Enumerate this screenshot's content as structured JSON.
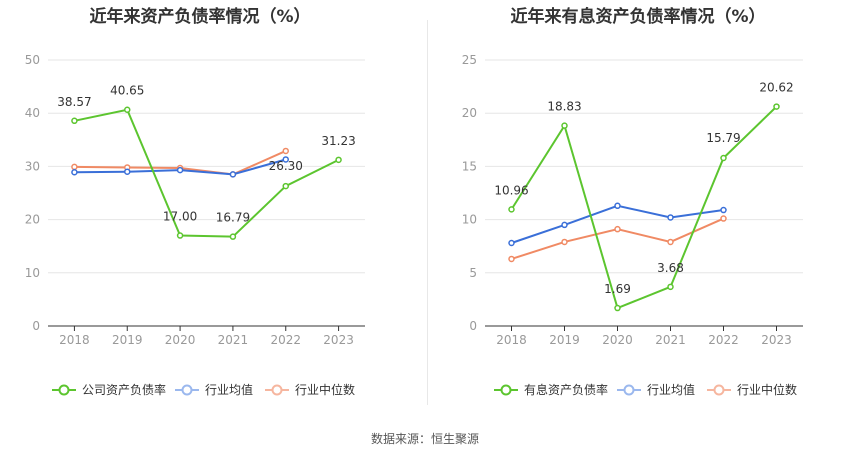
{
  "source_text": "数据来源：恒生聚源",
  "colors": {
    "company": "#5cc52f",
    "avg": "#3a6fd8",
    "median": "#f08a64",
    "grid": "#e6e6e6",
    "axis": "#333333",
    "tick": "#999999",
    "label": "#333333",
    "legend_avg": "#9bb8ee",
    "legend_median": "#f6b69f"
  },
  "chart_data": [
    {
      "type": "line",
      "title": "近年来资产负债率情况（%）",
      "categories": [
        "2018",
        "2019",
        "2020",
        "2021",
        "2022",
        "2023"
      ],
      "ylim": [
        0,
        50
      ],
      "yticks": [
        0,
        10,
        20,
        30,
        40,
        50
      ],
      "grid": true,
      "legend_placement": "bottom",
      "series": [
        {
          "name": "公司资产负债率",
          "values": [
            38.57,
            40.65,
            17.0,
            16.79,
            26.3,
            31.23
          ],
          "labels": [
            "38.57",
            "40.65",
            "17.00",
            "16.79",
            "26.30",
            "31.23"
          ]
        },
        {
          "name": "行业均值",
          "values": [
            28.9,
            29.0,
            29.3,
            28.5,
            31.3,
            null
          ]
        },
        {
          "name": "行业中位数",
          "values": [
            29.9,
            29.8,
            29.7,
            28.5,
            32.9,
            null
          ]
        }
      ]
    },
    {
      "type": "line",
      "title": "近年来有息资产负债率情况（%）",
      "categories": [
        "2018",
        "2019",
        "2020",
        "2021",
        "2022",
        "2023"
      ],
      "ylim": [
        0,
        25
      ],
      "yticks": [
        0,
        5,
        10,
        15,
        20,
        25
      ],
      "grid": true,
      "legend_placement": "bottom",
      "series": [
        {
          "name": "有息资产负债率",
          "values": [
            10.96,
            18.83,
            1.69,
            3.68,
            15.79,
            20.62
          ],
          "labels": [
            "10.96",
            "18.83",
            "1.69",
            "3.68",
            "15.79",
            "20.62"
          ]
        },
        {
          "name": "行业均值",
          "values": [
            7.8,
            9.5,
            11.3,
            10.2,
            10.9,
            null
          ]
        },
        {
          "name": "行业中位数",
          "values": [
            6.3,
            7.9,
            9.1,
            7.9,
            10.1,
            null
          ]
        }
      ]
    }
  ]
}
